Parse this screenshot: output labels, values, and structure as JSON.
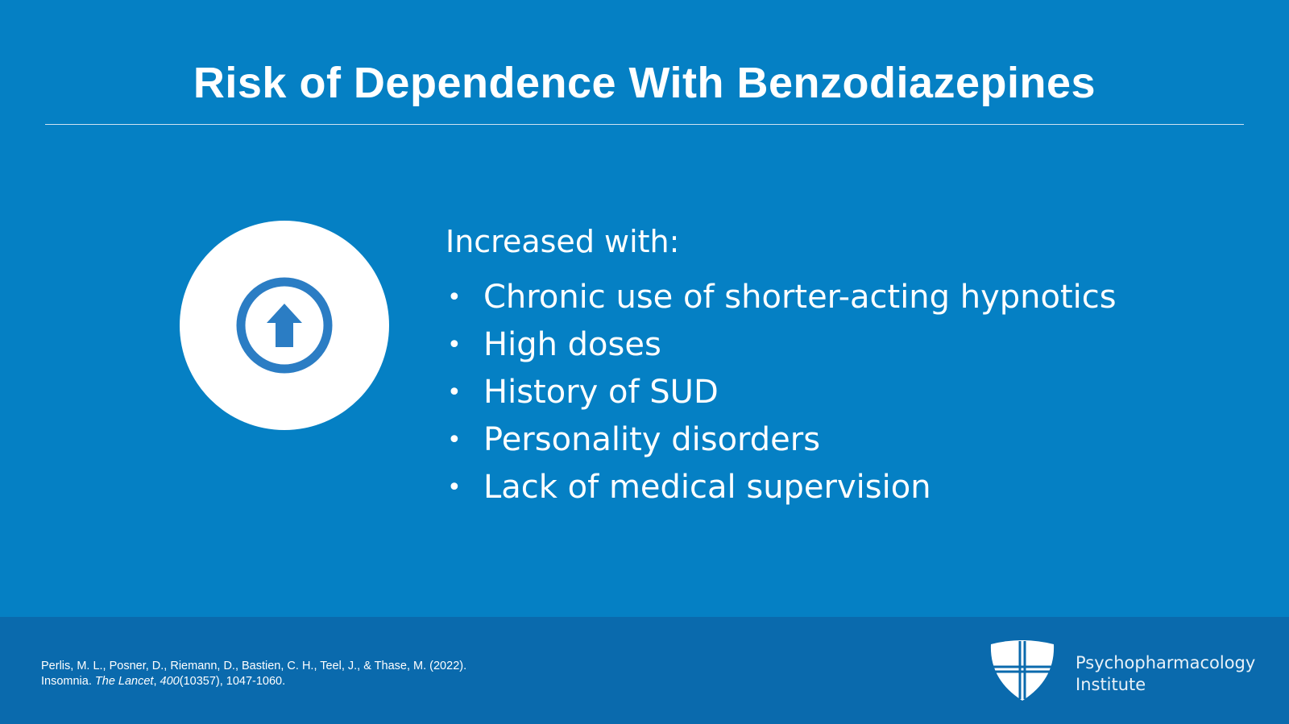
{
  "header": {
    "title": "Risk of Dependence With Benzodiazepines"
  },
  "content": {
    "lead": "Increased with:",
    "bullets": [
      "Chronic use of shorter-acting hypnotics",
      "High doses",
      "History of SUD",
      "Personality disorders",
      "Lack of medical supervision"
    ]
  },
  "footer": {
    "citation": {
      "line1": "Perlis, M. L., Posner, D., Riemann, D., Bastien, C. H., Teel, J., & Thase, M. (2022).",
      "line2": [
        "Insomnia. ",
        "The Lancet",
        ", ",
        "400",
        "(10357), 1047-1060."
      ]
    },
    "logo": {
      "line1": "Psychopharmacology",
      "line2": "Institute"
    }
  }
}
